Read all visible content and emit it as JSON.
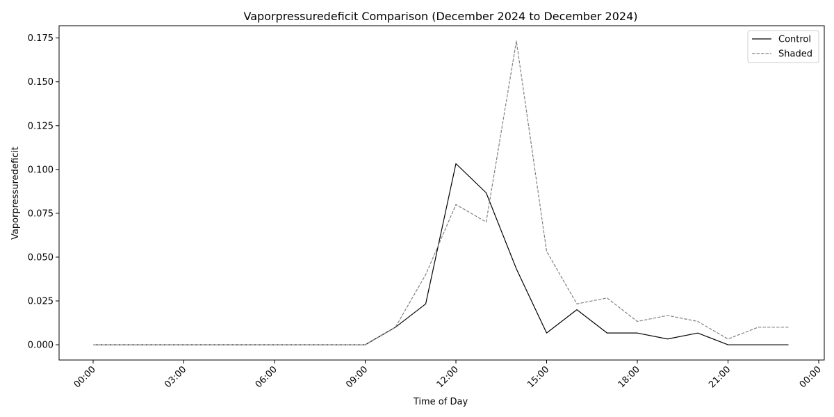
{
  "chart_data": {
    "type": "line",
    "title": "Vaporpressuredeficit Comparison (December 2024 to December 2024)",
    "xlabel": "Time of Day",
    "ylabel": "Vaporpressuredeficit",
    "x": [
      "00:00",
      "01:00",
      "02:00",
      "03:00",
      "04:00",
      "05:00",
      "06:00",
      "07:00",
      "08:00",
      "09:00",
      "10:00",
      "11:00",
      "12:00",
      "13:00",
      "14:00",
      "15:00",
      "16:00",
      "17:00",
      "18:00",
      "19:00",
      "20:00",
      "21:00",
      "22:00",
      "23:00"
    ],
    "x_tick_labels": [
      "00:00",
      "03:00",
      "06:00",
      "09:00",
      "12:00",
      "15:00",
      "18:00",
      "21:00",
      "00:00"
    ],
    "ylim": [
      -0.0087,
      0.182
    ],
    "y_ticks": [
      0.0,
      0.025,
      0.05,
      0.075,
      0.1,
      0.125,
      0.15,
      0.175
    ],
    "y_tick_labels": [
      "0.000",
      "0.025",
      "0.050",
      "0.075",
      "0.100",
      "0.125",
      "0.150",
      "0.175"
    ],
    "legend_position": "top-right",
    "grid": false,
    "series": [
      {
        "name": "Control",
        "color": "#000000",
        "style": "solid",
        "values": [
          0,
          0,
          0,
          0,
          0,
          0,
          0,
          0,
          0,
          0,
          0.01,
          0.0233,
          0.1033,
          0.0867,
          0.0433,
          0.0067,
          0.02,
          0.0067,
          0.0067,
          0.0033,
          0.0067,
          0,
          0,
          0
        ]
      },
      {
        "name": "Shaded",
        "color": "#808080",
        "style": "dashed",
        "values": [
          0,
          0,
          0,
          0,
          0,
          0,
          0,
          0,
          0,
          0,
          0.01,
          0.04,
          0.08,
          0.07,
          0.1733,
          0.0533,
          0.0233,
          0.0267,
          0.0133,
          0.0167,
          0.0133,
          0.0033,
          0.01,
          0.01
        ]
      }
    ]
  }
}
